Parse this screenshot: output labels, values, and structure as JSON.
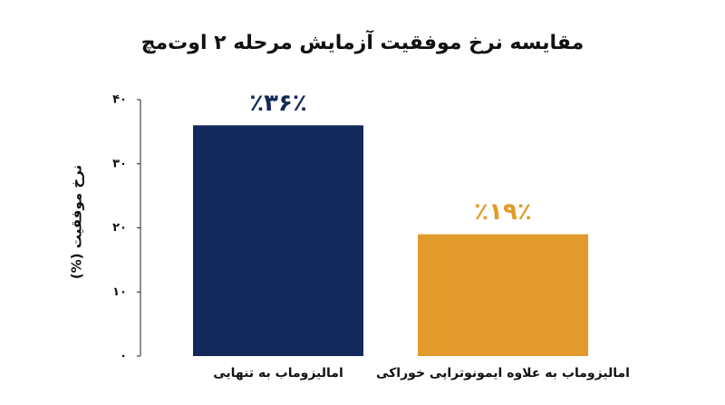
{
  "chart_data": {
    "type": "bar",
    "title": "مقایسه نرخ موفقیت آزمایش مرحله ۲ اوت‌مچ",
    "y_label": "نرخ موفقیت (%)",
    "categories": [
      "امالیزوماب به تنهایی",
      "امالیزوماب به علاوه ایمونوتراپی خوراکی"
    ],
    "values": [
      36,
      19
    ],
    "value_labels": [
      "٪۳۶٪",
      "٪۱۹٪"
    ],
    "colors": [
      "#13295b",
      "#e39a2c"
    ],
    "ylim": [
      0,
      40
    ],
    "yticks": [
      {
        "value": 0,
        "label": "۰"
      },
      {
        "value": 10,
        "label": "۱۰"
      },
      {
        "value": 20,
        "label": "۲۰"
      },
      {
        "value": 30,
        "label": "۳۰"
      },
      {
        "value": 40,
        "label": "۴۰"
      }
    ],
    "grid": false
  }
}
